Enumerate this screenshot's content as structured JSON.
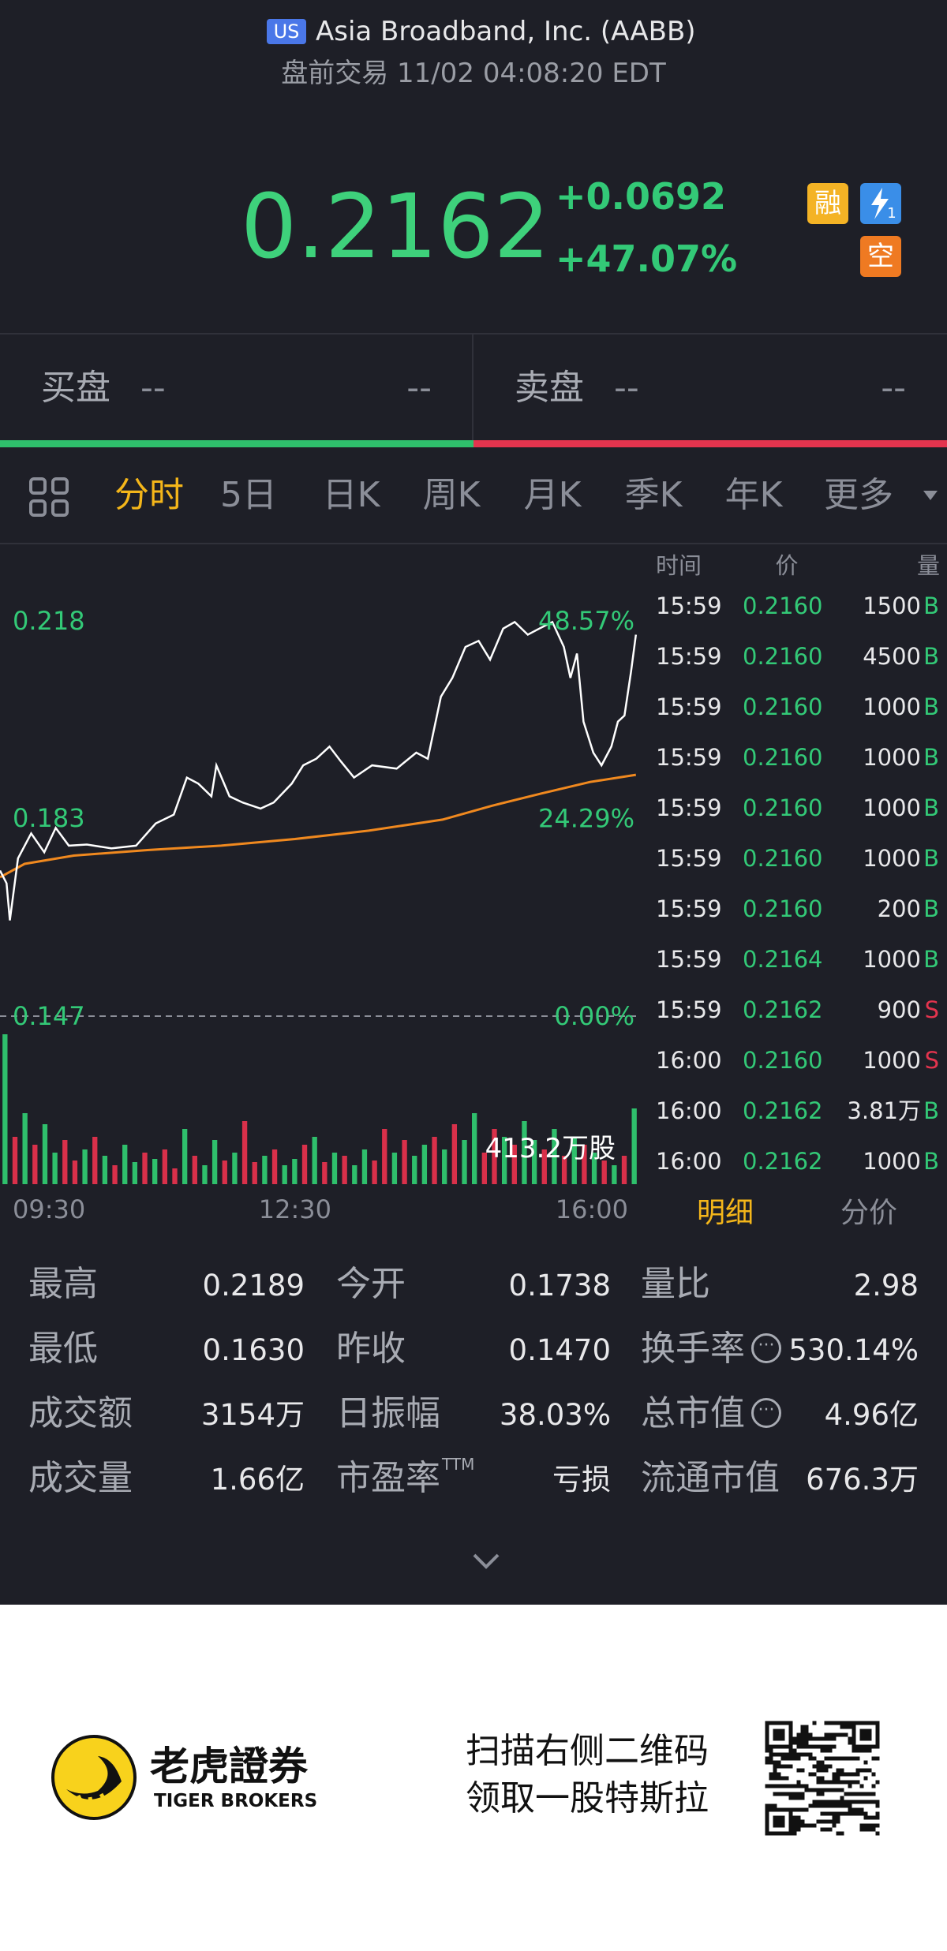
{
  "header": {
    "market_badge": "US",
    "title": "Asia Broadband, Inc. (AABB)",
    "subtitle": "盘前交易 11/02 04:08:20 EDT"
  },
  "quote": {
    "price": "0.2162",
    "change": "+0.0692",
    "change_percent": "+47.07%",
    "badges": {
      "margin": "融",
      "instant": "1",
      "short": "空"
    }
  },
  "order_book": {
    "bid": {
      "label": "买盘",
      "price": "--",
      "size": "--"
    },
    "ask": {
      "label": "卖盘",
      "price": "--",
      "size": "--"
    }
  },
  "tabs": [
    "分时",
    "5日",
    "日K",
    "周K",
    "月K",
    "季K",
    "年K",
    "更多"
  ],
  "active_tab": 0,
  "chart_data": {
    "type": "line",
    "x": [
      "09:30",
      "09:34",
      "09:36",
      "09:41",
      "09:49",
      "09:57",
      "10:04",
      "10:12",
      "10:23",
      "10:38",
      "10:53",
      "11:05",
      "11:16",
      "11:24",
      "11:31",
      "11:39",
      "11:42",
      "11:50",
      "11:58",
      "12:09",
      "12:17",
      "12:28",
      "12:35",
      "12:43",
      "12:51",
      "12:58",
      "13:06",
      "13:17",
      "13:32",
      "13:44",
      "13:51",
      "13:59",
      "14:06",
      "14:14",
      "14:22",
      "14:29",
      "14:37",
      "14:44",
      "14:52",
      "14:59",
      "15:07",
      "15:14",
      "15:18",
      "15:22",
      "15:26",
      "15:32",
      "15:37",
      "15:43",
      "15:47",
      "15:51",
      "15:55",
      "15:58"
    ],
    "values": [
      0.1733,
      0.171,
      0.1643,
      0.1755,
      0.18,
      0.1766,
      0.181,
      0.1778,
      0.178,
      0.1773,
      0.1778,
      0.1818,
      0.1834,
      0.1901,
      0.189,
      0.1867,
      0.1923,
      0.1867,
      0.1856,
      0.1845,
      0.1856,
      0.189,
      0.1923,
      0.1935,
      0.1957,
      0.193,
      0.1901,
      0.1923,
      0.1917,
      0.1946,
      0.1935,
      0.2047,
      0.2081,
      0.2137,
      0.2148,
      0.2114,
      0.217,
      0.2182,
      0.2159,
      0.217,
      0.2182,
      0.2137,
      0.2081,
      0.2125,
      0.2002,
      0.1946,
      0.1923,
      0.1957,
      0.2002,
      0.2013,
      0.2092,
      0.2159
    ],
    "color": "#ffffff",
    "average": {
      "x": [
        "09:30",
        "09:45",
        "10:15",
        "11:00",
        "11:45",
        "12:30",
        "13:15",
        "14:00",
        "14:30",
        "15:00",
        "15:30",
        "15:58"
      ],
      "values": [
        0.1721,
        0.1745,
        0.176,
        0.177,
        0.1778,
        0.179,
        0.1805,
        0.1825,
        0.185,
        0.1872,
        0.1893,
        0.1906
      ],
      "color": "#f0891f"
    },
    "xlim": [
      "09:30",
      "16:00"
    ],
    "xticks": [
      "09:30",
      "12:30",
      "16:00"
    ],
    "ylim": [
      0.147,
      0.2184
    ],
    "yticks": [
      {
        "value": 0.2184,
        "label": "0.218"
      },
      {
        "value": 0.18274,
        "label": "0.183"
      },
      0.147
    ],
    "y2lim": [
      0,
      48.57
    ],
    "y2ticks": [
      {
        "value": 48.57,
        "label": "48.57%"
      },
      {
        "value": 24.29,
        "label": "24.29%"
      },
      {
        "value": 0,
        "label": "0.00%"
      }
    ],
    "reference_line": 0.147,
    "volume": {
      "values": [
        95,
        30,
        45,
        25,
        38,
        20,
        28,
        15,
        22,
        30,
        18,
        12,
        25,
        14,
        20,
        16,
        22,
        10,
        35,
        18,
        12,
        28,
        15,
        20,
        40,
        14,
        18,
        22,
        12,
        16,
        25,
        30,
        14,
        20,
        18,
        12,
        22,
        15,
        35,
        20,
        28,
        18,
        25,
        30,
        22,
        38,
        28,
        45,
        20,
        35,
        30,
        25,
        40,
        28,
        22,
        35,
        18,
        30,
        25,
        20,
        15,
        12,
        18,
        48
      ],
      "rising": [
        true,
        false,
        true,
        false,
        true,
        true,
        false,
        false,
        true,
        false,
        true,
        false,
        true,
        true,
        false,
        true,
        false,
        false,
        true,
        false,
        true,
        true,
        false,
        true,
        false,
        false,
        true,
        false,
        true,
        true,
        false,
        true,
        false,
        true,
        false,
        true,
        true,
        false,
        false,
        true,
        false,
        true,
        true,
        false,
        true,
        false,
        true,
        true,
        false,
        false,
        true,
        false,
        true,
        true,
        false,
        true,
        false,
        true,
        false,
        true,
        false,
        true,
        false,
        true
      ],
      "ylim": [
        0,
        100
      ],
      "up_color": "#2fbf6c",
      "down_color": "#d9304a",
      "total_label": "413.2万股"
    }
  },
  "trades": {
    "header": [
      "时间",
      "价",
      "量"
    ],
    "rows": [
      [
        "15:59",
        "0.2160",
        "1500",
        "B"
      ],
      [
        "15:59",
        "0.2160",
        "4500",
        "B"
      ],
      [
        "15:59",
        "0.2160",
        "1000",
        "B"
      ],
      [
        "15:59",
        "0.2160",
        "1000",
        "B"
      ],
      [
        "15:59",
        "0.2160",
        "1000",
        "B"
      ],
      [
        "15:59",
        "0.2160",
        "1000",
        "B"
      ],
      [
        "15:59",
        "0.2160",
        "200",
        "B"
      ],
      [
        "15:59",
        "0.2164",
        "1000",
        "B"
      ],
      [
        "15:59",
        "0.2162",
        "900",
        "S"
      ],
      [
        "16:00",
        "0.2160",
        "1000",
        "S"
      ],
      [
        "16:00",
        "0.2162",
        "3.81万",
        "B"
      ],
      [
        "16:00",
        "0.2162",
        "1000",
        "B"
      ]
    ],
    "tabs": [
      "明细",
      "分价"
    ]
  },
  "stats": [
    {
      "label": "最高",
      "value": "0.2189"
    },
    {
      "label": "今开",
      "value": "0.1738"
    },
    {
      "label": "量比",
      "value": "2.98"
    },
    {
      "label": "最低",
      "value": "0.1630"
    },
    {
      "label": "昨收",
      "value": "0.1470"
    },
    {
      "label": "换手率",
      "value": "530.14%",
      "info": true
    },
    {
      "label": "成交额",
      "value": "3154万"
    },
    {
      "label": "日振幅",
      "value": "38.03%"
    },
    {
      "label": "总市值",
      "value": "4.96亿",
      "info": true
    },
    {
      "label": "成交量",
      "value": "1.66亿"
    },
    {
      "label": "市盈率",
      "sup": "TTM",
      "value": "亏损"
    },
    {
      "label": "流通市值",
      "value": "676.3万"
    }
  ],
  "footer": {
    "brand_cn": "老虎證券",
    "brand_en": "TIGER BROKERS",
    "promo": [
      "扫描右侧二维码",
      "领取一股特斯拉"
    ]
  }
}
